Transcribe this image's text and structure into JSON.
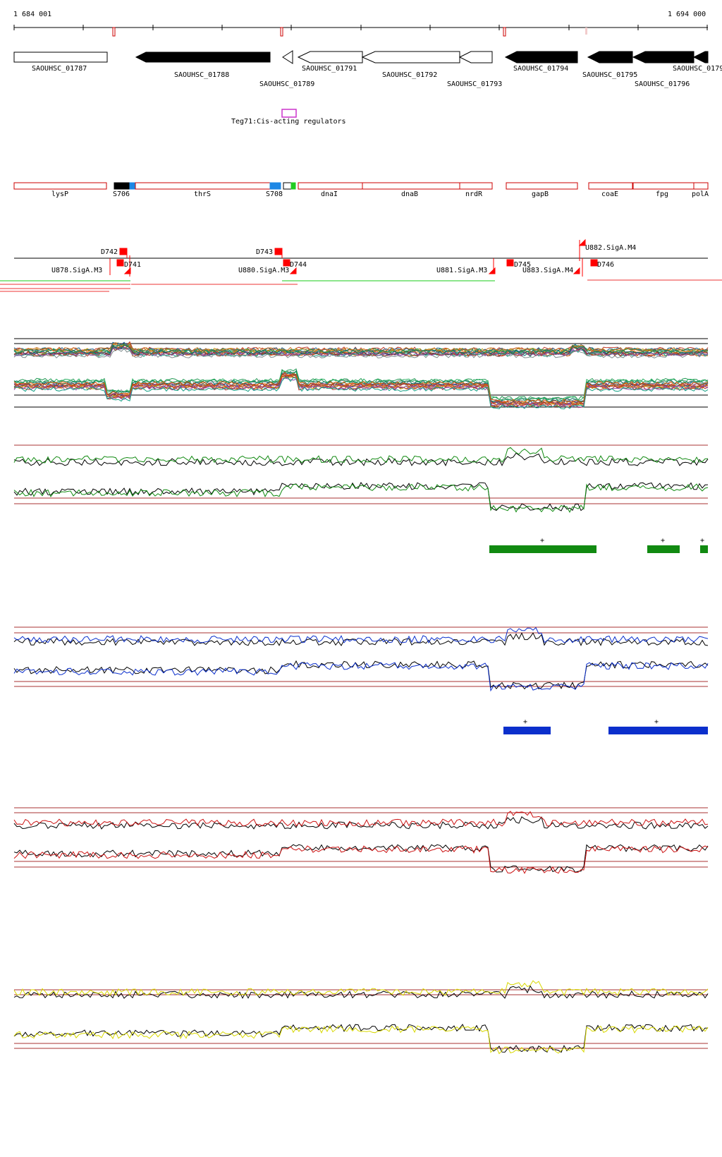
{
  "coords": {
    "start": "1 684 001",
    "end": "1 694 000"
  },
  "genes": [
    {
      "id": "SAOUHSC_01787"
    },
    {
      "id": "SAOUHSC_01788"
    },
    {
      "id": "SAOUHSC_01789"
    },
    {
      "id": "SAOUHSC_01791"
    },
    {
      "id": "SAOUHSC_01792"
    },
    {
      "id": "SAOUHSC_01793"
    },
    {
      "id": "SAOUHSC_01794"
    },
    {
      "id": "SAOUHSC_01795"
    },
    {
      "id": "SAOUHSC_01796"
    },
    {
      "id": "SAOUHSC_0179"
    }
  ],
  "regulator": {
    "label": "Teg71:Cis-acting regulators"
  },
  "annotations": [
    {
      "label": "lysP"
    },
    {
      "label": "S706"
    },
    {
      "label": "thrS"
    },
    {
      "label": "S708"
    },
    {
      "label": "dnaI"
    },
    {
      "label": "dnaB"
    },
    {
      "label": "nrdR"
    },
    {
      "label": "gapB"
    },
    {
      "label": "coaE"
    },
    {
      "label": "fpg"
    },
    {
      "label": "polA"
    }
  ],
  "markers": [
    {
      "label": "D742"
    },
    {
      "label": "D741"
    },
    {
      "label": "U878.SigA.M3"
    },
    {
      "label": "D743"
    },
    {
      "label": "D744"
    },
    {
      "label": "U880.SigA.M3"
    },
    {
      "label": "U881.SigA.M3"
    },
    {
      "label": "D745"
    },
    {
      "label": "U883.SigA.M4"
    },
    {
      "label": "U882.SigA.M4"
    },
    {
      "label": "D746"
    }
  ],
  "segment_marks": {
    "green": [
      "+",
      "+",
      "+"
    ],
    "blue": [
      "+",
      "+"
    ]
  },
  "colors": {
    "forward_gene": "#000000",
    "reverse_gene": "#ffffff",
    "regulator": "#cc33cc",
    "annotation_border": "#cc0000",
    "marker": "#ff0000",
    "green_track": "#118a11",
    "blue_track": "#0b2fcc",
    "red_track": "#cc1111",
    "yellow_track": "#d8d800",
    "threshold_line": "#aa3333"
  }
}
